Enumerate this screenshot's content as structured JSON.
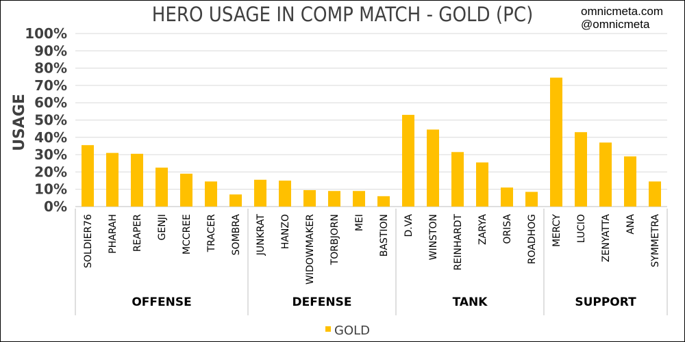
{
  "watermark": {
    "site": "omnicmeta.com",
    "handle": "@omnicmeta"
  },
  "chart_data": {
    "type": "bar",
    "title": "HERO USAGE IN COMP MATCH - GOLD (PC)",
    "ylabel": "USAGE",
    "xlabel": "",
    "ylim": [
      0,
      100
    ],
    "y_ticks": [
      "0%",
      "10%",
      "20%",
      "30%",
      "40%",
      "50%",
      "60%",
      "70%",
      "80%",
      "90%",
      "100%"
    ],
    "grid": true,
    "legend": "bottom",
    "categories": [
      "SOLDIER76",
      "PHARAH",
      "REAPER",
      "GENJI",
      "MCCREE",
      "TRACER",
      "SOMBRA",
      "JUNKRAT",
      "HANZO",
      "WIDOWMAKER",
      "TORBJORN",
      "MEI",
      "BASTION",
      "D.VA",
      "WINSTON",
      "REINHARDT",
      "ZARYA",
      "ORISA",
      "ROADHOG",
      "MERCY",
      "LUCIO",
      "ZENYATTA",
      "ANA",
      "SYMMETRA"
    ],
    "groups": [
      {
        "name": "OFFENSE",
        "count": 7
      },
      {
        "name": "DEFENSE",
        "count": 6
      },
      {
        "name": "TANK",
        "count": 6
      },
      {
        "name": "SUPPORT",
        "count": 5
      }
    ],
    "series": [
      {
        "name": "GOLD",
        "color": "#ffc000",
        "values": [
          35.5,
          31,
          30.5,
          22.5,
          19,
          14.5,
          7,
          15.5,
          15,
          9.5,
          9,
          9,
          6,
          53,
          44.5,
          31.5,
          25.5,
          11,
          8.5,
          74.5,
          43,
          37,
          29,
          14.5
        ]
      }
    ]
  }
}
